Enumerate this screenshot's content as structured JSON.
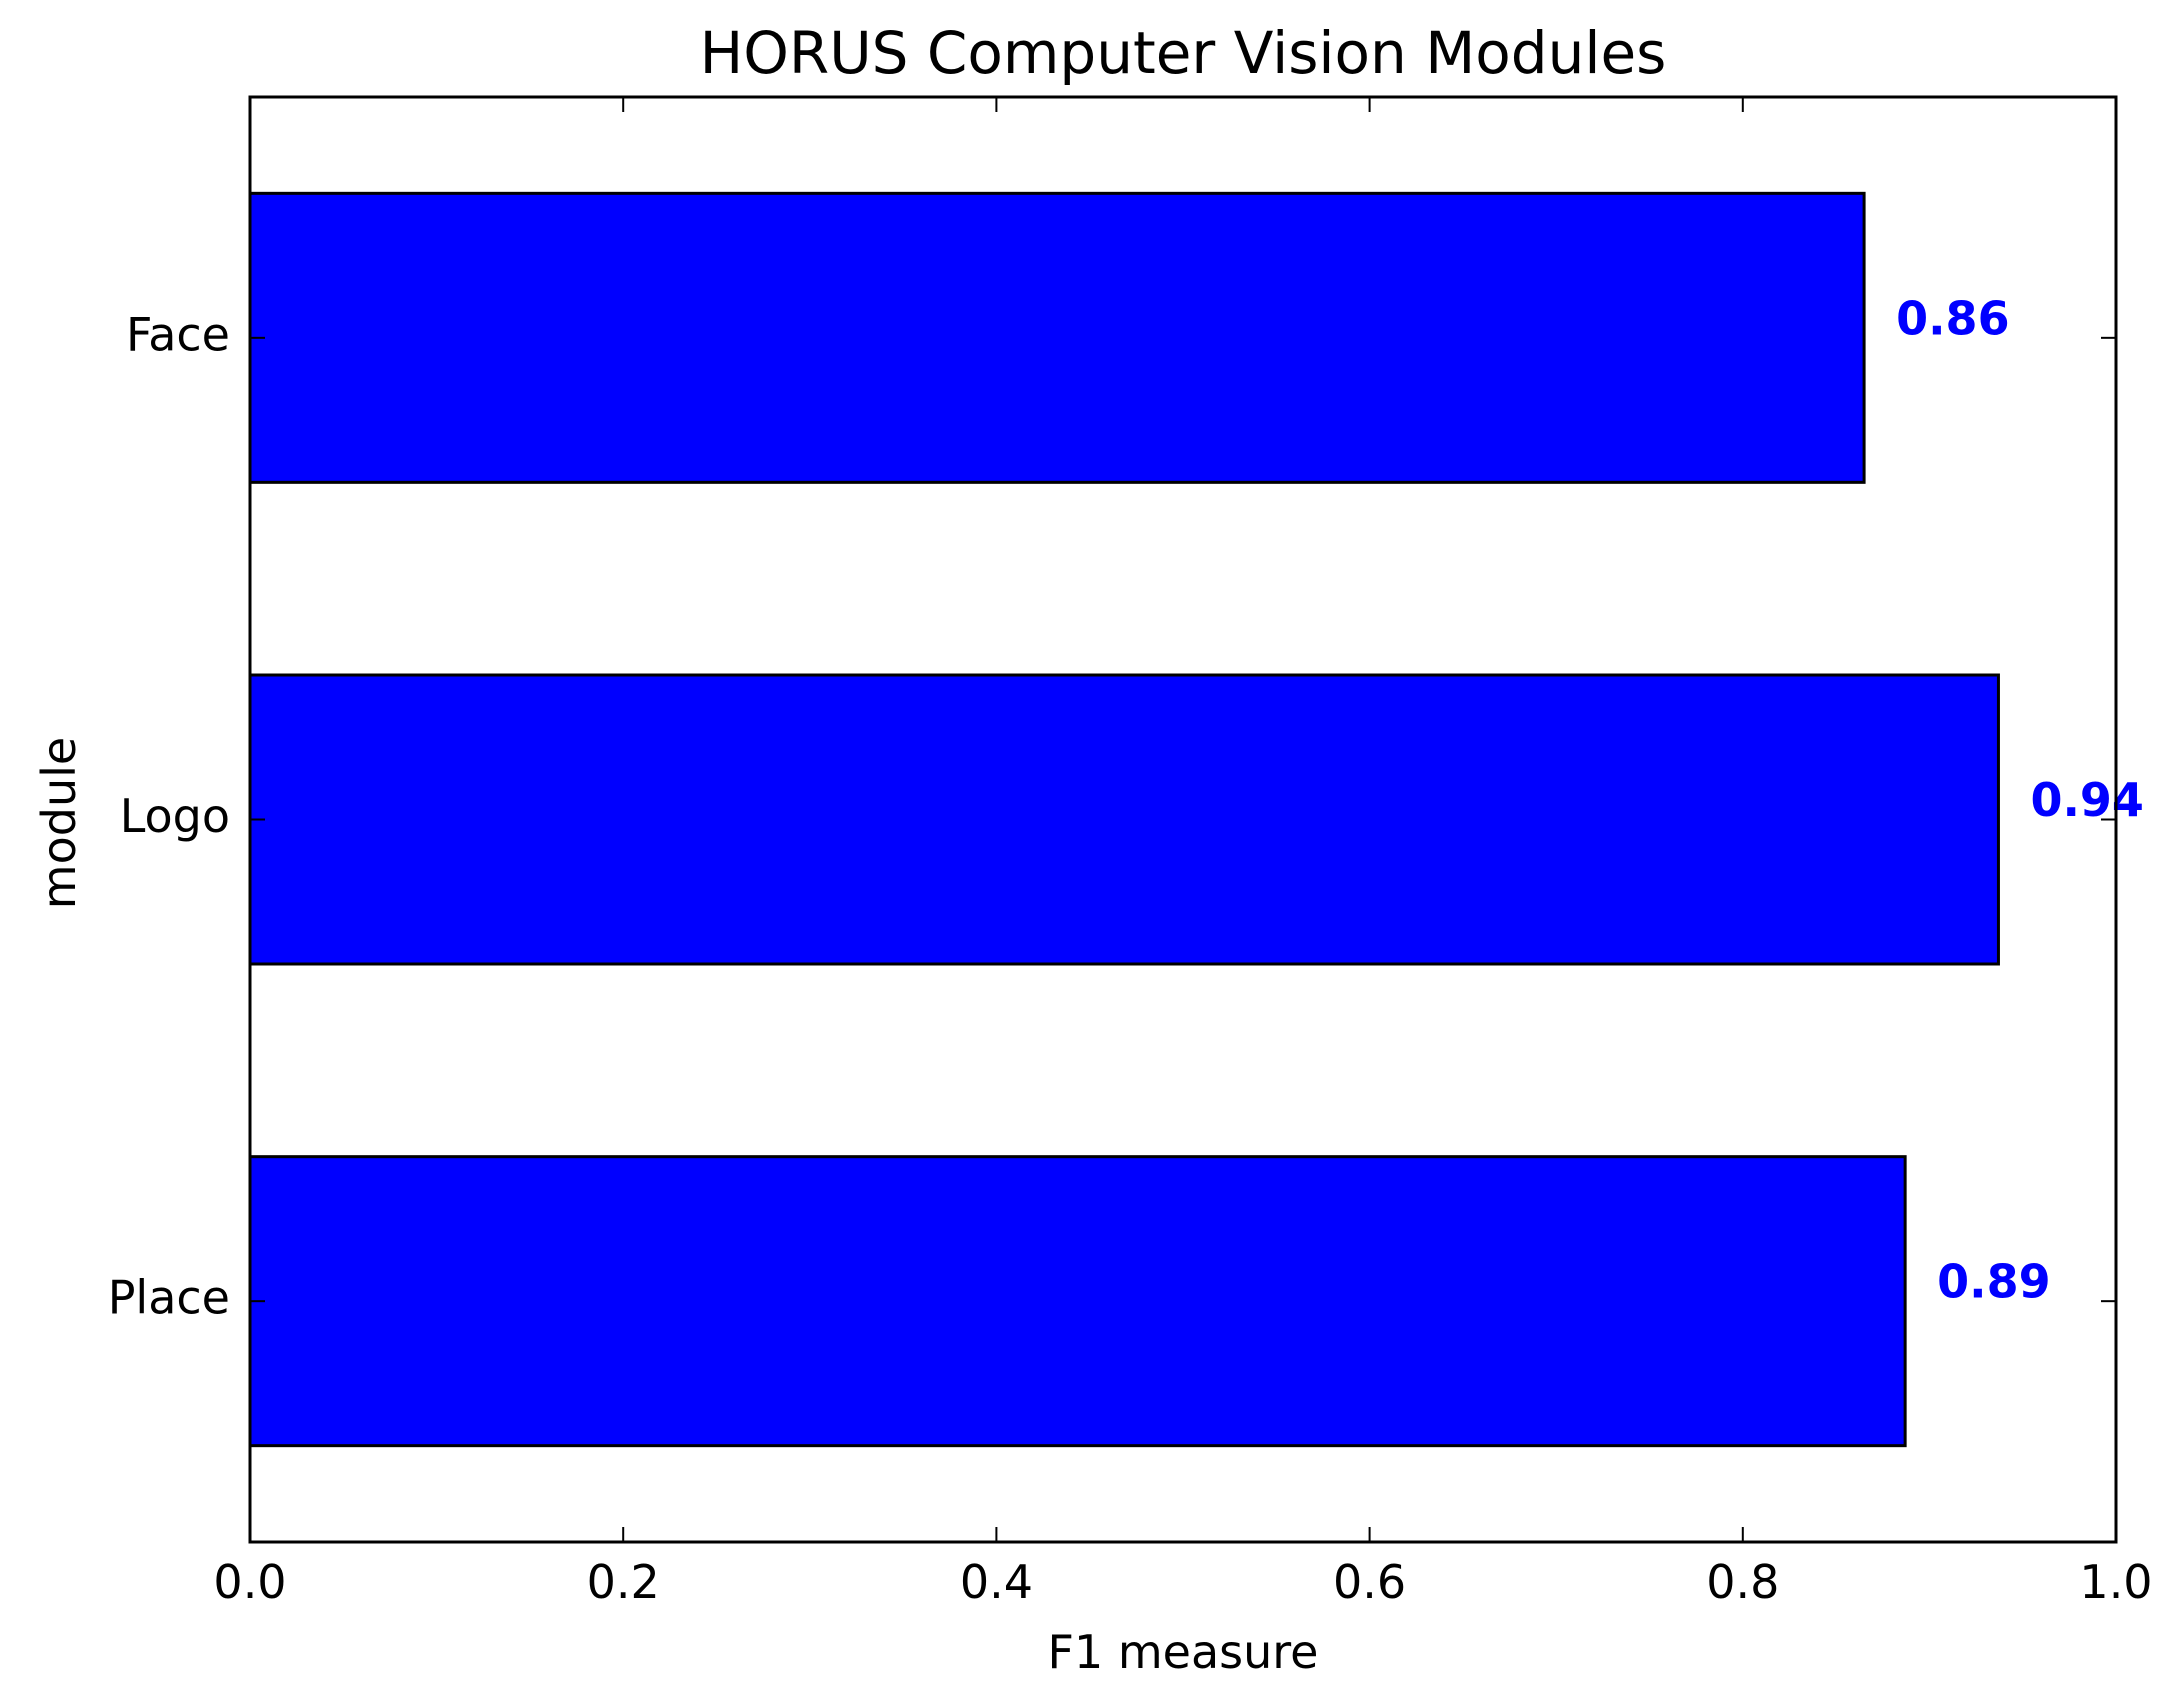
{
  "chart_data": {
    "type": "bar",
    "orientation": "horizontal",
    "title": "HORUS Computer Vision Modules",
    "xlabel": "F1 measure",
    "ylabel": "module",
    "categories": [
      "Face",
      "Logo",
      "Place"
    ],
    "values": [
      0.865,
      0.937,
      0.887
    ],
    "value_labels": [
      "0.86",
      "0.94",
      "0.89"
    ],
    "xlim": [
      0.0,
      1.0
    ],
    "xticks": [
      "0.0",
      "0.2",
      "0.4",
      "0.6",
      "0.8",
      "1.0"
    ],
    "grid": false,
    "legend": null,
    "colors": {
      "bar": "#0000ff",
      "value_label": "#0000ff"
    }
  }
}
